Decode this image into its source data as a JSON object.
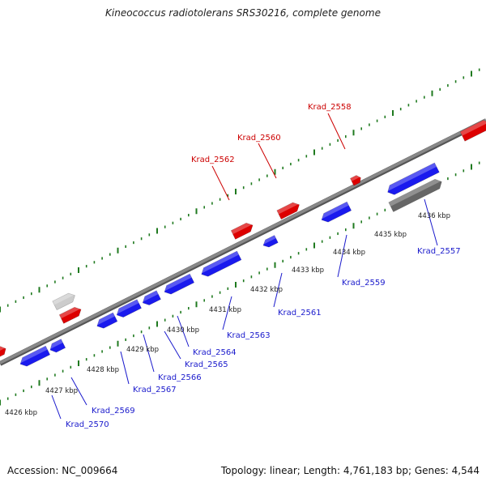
{
  "title": "Kineococcus radiotolerans SRS30216, complete genome",
  "footer": {
    "accession": "Accession: NC_009664",
    "summary": "Topology: linear; Length: 4,761,183 bp; Genes: 4,544"
  },
  "colors": {
    "forward": "#dd0000",
    "reverse": "#1a1aee",
    "selected": "#666666",
    "unlabeled": "#cccccc",
    "backbone": "#888888",
    "tick": "#1f7a1f",
    "label_forward": "#cc0000",
    "label_reverse": "#1a1acc"
  },
  "kbp_ticks": [
    "4426 kbp",
    "4427 kbp",
    "4428 kbp",
    "4429 kbp",
    "4430 kbp",
    "4431 kbp",
    "4432 kbp",
    "4433 kbp",
    "4434 kbp",
    "4435 kbp",
    "4436 kbp"
  ],
  "genes_forward": [
    {
      "label": "Krad_2562"
    },
    {
      "label": "Krad_2560"
    },
    {
      "label": "Krad_2558"
    }
  ],
  "genes_reverse": [
    {
      "label": "Krad_2570"
    },
    {
      "label": "Krad_2569"
    },
    {
      "label": "Krad_2567"
    },
    {
      "label": "Krad_2566"
    },
    {
      "label": "Krad_2565"
    },
    {
      "label": "Krad_2564"
    },
    {
      "label": "Krad_2563"
    },
    {
      "label": "Krad_2561"
    },
    {
      "label": "Krad_2559"
    },
    {
      "label": "Krad_2557"
    }
  ]
}
